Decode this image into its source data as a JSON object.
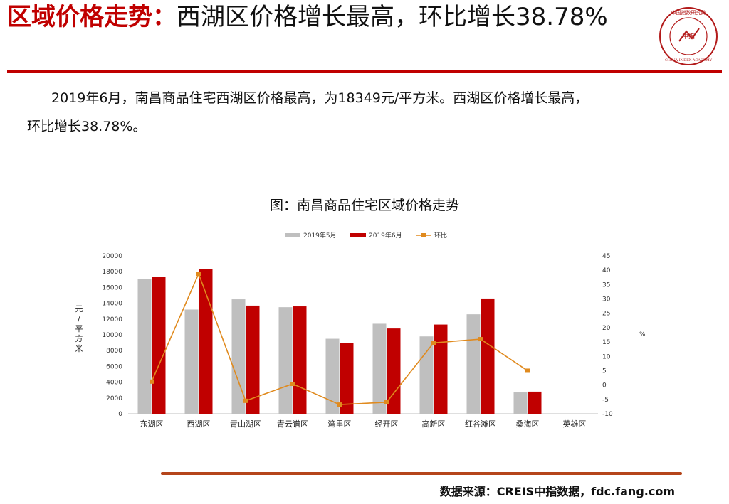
{
  "header": {
    "title_highlight": "区域价格走势：",
    "title_rest": "西湖区价格增长最高，环比增长38.78%"
  },
  "logo": {
    "ring_text": "中国指数研究院",
    "center_text": "中指",
    "english_text": "CHINA INDEX ACADEMY"
  },
  "body": {
    "line1": "2019年6月，南昌商品住宅西湖区价格最高，为18349元/平方米。西湖区价格增长最高，",
    "line2": "环比增长38.78%。"
  },
  "footer": {
    "source": "数据来源：CREIS中指数据，fdc.fang.com"
  },
  "colors": {
    "accent": "#c00000",
    "may_bar": "#bfbfbf",
    "june_bar": "#c00000",
    "mom_line": "#e08a1e"
  },
  "chart_data": {
    "type": "bar",
    "title": "图：南昌商品住宅区域价格走势",
    "categories": [
      "东湖区",
      "西湖区",
      "青山湖区",
      "青云谱区",
      "湾里区",
      "经开区",
      "高新区",
      "红谷滩区",
      "桑海区",
      "英雄区"
    ],
    "series": [
      {
        "name": "2019年5月",
        "kind": "bar",
        "axis": "left",
        "values": [
          17100,
          13200,
          14500,
          13500,
          9500,
          11400,
          9800,
          12600,
          2700,
          null
        ]
      },
      {
        "name": "2019年6月",
        "kind": "bar",
        "axis": "left",
        "values": [
          17300,
          18349,
          13700,
          13600,
          9000,
          10800,
          11300,
          14600,
          2800,
          null
        ]
      },
      {
        "name": "环比",
        "kind": "line",
        "axis": "right",
        "values": [
          1.2,
          38.78,
          -5.5,
          0.4,
          -6.8,
          -6.0,
          14.7,
          16.0,
          5.0,
          null
        ]
      }
    ],
    "ylabel": "元/平方米",
    "y2label": "%",
    "ylim": [
      0,
      20000
    ],
    "y2lim": [
      -10,
      45
    ],
    "yticks": [
      "0",
      "2000",
      "4000",
      "6000",
      "8000",
      "10000",
      "12000",
      "14000",
      "16000",
      "18000",
      "20000"
    ],
    "y2ticks": [
      "-10",
      "-5",
      "0",
      "5",
      "10",
      "15",
      "20",
      "25",
      "30",
      "35",
      "40",
      "45"
    ],
    "legend": "top",
    "grid": false
  }
}
